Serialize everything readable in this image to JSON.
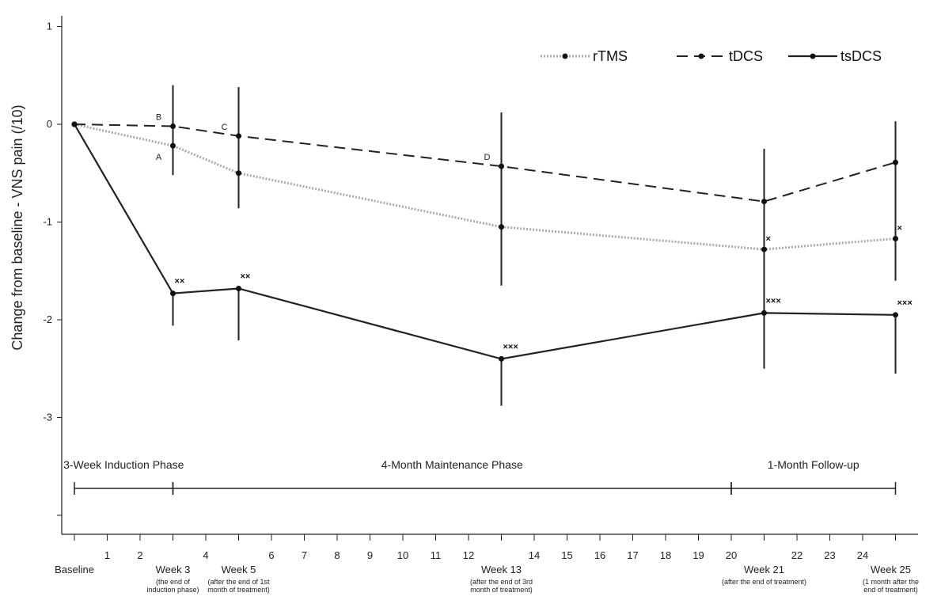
{
  "chart_data": {
    "type": "line",
    "ylabel": "Change from baseline - VNS pain (/10)",
    "ylim": [
      -4.2,
      1.1
    ],
    "yticks": [
      1,
      0,
      -1,
      -2,
      -3
    ],
    "xlim": [
      0,
      25
    ],
    "xtick_numbers": [
      1,
      2,
      4,
      6,
      7,
      8,
      9,
      10,
      11,
      12,
      14,
      15,
      16,
      17,
      18,
      19,
      20,
      22,
      23,
      24
    ],
    "milestones": [
      {
        "x": 0,
        "label": "Baseline",
        "sub": []
      },
      {
        "x": 3,
        "label": "Week 3",
        "sub": [
          "(the end of",
          "induction phase)"
        ]
      },
      {
        "x": 5,
        "label": "Week 5",
        "sub": [
          "(after the end of 1st",
          "month of treatment)"
        ]
      },
      {
        "x": 13,
        "label": "Week 13",
        "sub": [
          "(after the end of 3rd",
          "month of treatment)"
        ]
      },
      {
        "x": 21,
        "label": "Week 21",
        "sub": [
          "(after the end of treatment)"
        ]
      },
      {
        "x": 25,
        "label": "Week 25",
        "sub": [
          "(1 month after the",
          "end of treatment)"
        ]
      }
    ],
    "x": [
      0,
      3,
      5,
      13,
      21,
      25
    ],
    "series": [
      {
        "name": "rTMS",
        "style": "dotted",
        "color": "#aaaaaa",
        "values": [
          0,
          -0.22,
          -0.5,
          -1.05,
          -1.28,
          -1.17
        ],
        "err_low": [
          null,
          -0.52,
          -0.86,
          -1.65,
          -2.1,
          -1.6
        ],
        "err_high": [
          null,
          0.4,
          0.38,
          0.12,
          -0.25,
          0.03
        ],
        "sig": [
          null,
          null,
          null,
          null,
          "×",
          "×"
        ]
      },
      {
        "name": "tDCS",
        "style": "dashed",
        "color": "#222222",
        "values": [
          0,
          -0.02,
          -0.12,
          -0.43,
          -0.79,
          -0.39
        ],
        "err_low": [
          null,
          null,
          null,
          null,
          null,
          null
        ],
        "err_high": [
          null,
          null,
          null,
          null,
          null,
          null
        ],
        "sig": [
          null,
          null,
          null,
          null,
          null,
          null
        ]
      },
      {
        "name": "tsDCS",
        "style": "solid",
        "color": "#222222",
        "values": [
          0,
          -1.73,
          -1.68,
          -2.4,
          -1.93,
          -1.95
        ],
        "err_low": [
          null,
          -2.06,
          -2.21,
          -2.88,
          -2.5,
          -2.55
        ],
        "err_high": [
          null,
          null,
          null,
          null,
          null,
          null
        ],
        "sig": [
          null,
          "××",
          "××",
          "×××",
          "×××",
          "×××"
        ]
      }
    ],
    "annotations": [
      {
        "text": "B",
        "x": 3,
        "y": -0.02
      },
      {
        "text": "A",
        "x": 3,
        "y": -0.22
      },
      {
        "text": "C",
        "x": 5,
        "y": -0.12
      },
      {
        "text": "D",
        "x": 13,
        "y": -0.43
      }
    ],
    "phases": [
      {
        "label": "3-Week Induction Phase",
        "from": 0,
        "to": 3
      },
      {
        "label": "4-Month Maintenance Phase",
        "from": 3,
        "to": 20
      },
      {
        "label": "1-Month Follow-up",
        "from": 20,
        "to": 25
      }
    ],
    "legend_position": "top-right",
    "grid": false
  }
}
